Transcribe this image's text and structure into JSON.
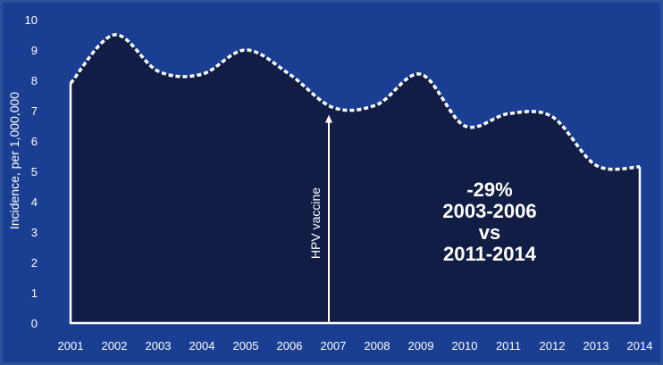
{
  "chart_data": {
    "type": "area",
    "title": "",
    "xlabel": "",
    "ylabel": "Incidence, per 1,000,000",
    "x": [
      "2001",
      "2002",
      "2003",
      "2004",
      "2005",
      "2006",
      "2007",
      "2008",
      "2009",
      "2010",
      "2011",
      "2012",
      "2013",
      "2014"
    ],
    "y_ticks": [
      "0",
      "1",
      "2",
      "3",
      "4",
      "5",
      "6",
      "7",
      "8",
      "9",
      "10"
    ],
    "ylim": [
      0,
      10
    ],
    "grid": false,
    "legend": "none",
    "series": [
      {
        "name": "",
        "values": [
          7.9,
          9.5,
          8.3,
          8.2,
          9.0,
          8.2,
          7.1,
          7.2,
          8.2,
          6.5,
          6.9,
          6.8,
          5.2,
          5.15
        ]
      }
    ],
    "annotation": {
      "label": "HPV vaccine",
      "x": "2007",
      "y": 7.1
    },
    "callout": [
      "-29%",
      "2003-2006",
      "vs",
      "2011-2014"
    ],
    "colors": {
      "background": "#1a3f92",
      "area_fill": "#111d44",
      "line": "#ffffff",
      "text": "#ffffff"
    }
  }
}
